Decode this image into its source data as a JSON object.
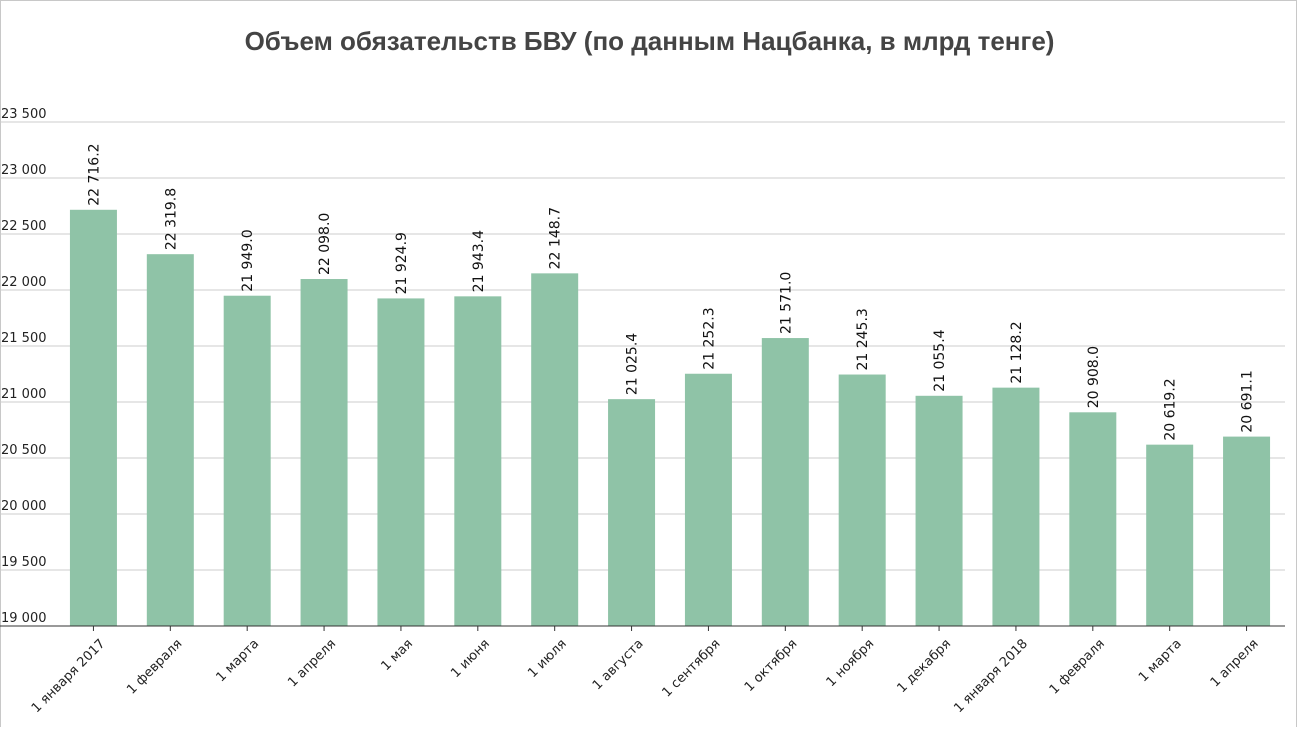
{
  "chart_data": {
    "type": "bar",
    "title": "Объем обязательств БВУ (по данным Нацбанка, в млрд тенге)",
    "xlabel": "",
    "ylabel": "",
    "ylim": [
      19000,
      23500
    ],
    "yticks": [
      19000,
      19500,
      20000,
      20500,
      21000,
      21500,
      22000,
      22500,
      23000,
      23500
    ],
    "ytick_labels": [
      "19 000",
      "19 500",
      "20 000",
      "20 500",
      "21 000",
      "21 500",
      "22 000",
      "22 500",
      "23 000",
      "23 500"
    ],
    "grid": true,
    "legend": "none",
    "bar_color": "#8fc3a7",
    "categories": [
      "1 января 2017",
      "1 февраля",
      "1 марта",
      "1 апреля",
      "1 мая",
      "1 июня",
      "1 июля",
      "1 августа",
      "1 сентября",
      "1 октября",
      "1 ноября",
      "1 декабря",
      "1 января 2018",
      "1 февраля",
      "1 марта",
      "1 апреля"
    ],
    "values": [
      22716.2,
      22319.8,
      21949.0,
      22098.0,
      21924.9,
      21943.4,
      22148.7,
      21025.4,
      21252.3,
      21571.0,
      21245.3,
      21055.4,
      21128.2,
      20908.0,
      20619.2,
      20691.1
    ],
    "value_labels": [
      "22 716.2",
      "22 319.8",
      "21 949.0",
      "22 098.0",
      "21 924.9",
      "21 943.4",
      "22 148.7",
      "21 025.4",
      "21 252.3",
      "21 571.0",
      "21 245.3",
      "21 055.4",
      "21 128.2",
      "20 908.0",
      "20 619.2",
      "20 691.1"
    ]
  }
}
